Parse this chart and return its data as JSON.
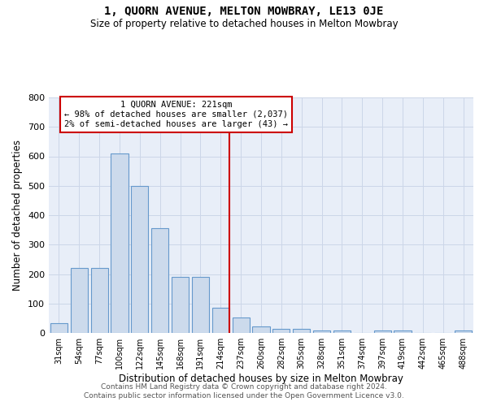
{
  "title": "1, QUORN AVENUE, MELTON MOWBRAY, LE13 0JE",
  "subtitle": "Size of property relative to detached houses in Melton Mowbray",
  "xlabel": "Distribution of detached houses by size in Melton Mowbray",
  "ylabel": "Number of detached properties",
  "bar_color": "#ccdaec",
  "bar_edge_color": "#6699cc",
  "categories": [
    "31sqm",
    "54sqm",
    "77sqm",
    "100sqm",
    "122sqm",
    "145sqm",
    "168sqm",
    "191sqm",
    "214sqm",
    "237sqm",
    "260sqm",
    "282sqm",
    "305sqm",
    "328sqm",
    "351sqm",
    "374sqm",
    "397sqm",
    "419sqm",
    "442sqm",
    "465sqm",
    "488sqm"
  ],
  "values": [
    33,
    220,
    220,
    610,
    500,
    357,
    190,
    190,
    85,
    53,
    22,
    13,
    13,
    7,
    7,
    0,
    8,
    8,
    0,
    0,
    8
  ],
  "vline_index": 8,
  "vline_color": "#cc0000",
  "ylim": [
    0,
    800
  ],
  "yticks": [
    0,
    100,
    200,
    300,
    400,
    500,
    600,
    700,
    800
  ],
  "annotation_title": "1 QUORN AVENUE: 221sqm",
  "annotation_line1": "← 98% of detached houses are smaller (2,037)",
  "annotation_line2": "2% of semi-detached houses are larger (43) →",
  "grid_color": "#ccd6e8",
  "bg_color": "#e8eef8",
  "footer1": "Contains HM Land Registry data © Crown copyright and database right 2024.",
  "footer2": "Contains public sector information licensed under the Open Government Licence v3.0."
}
